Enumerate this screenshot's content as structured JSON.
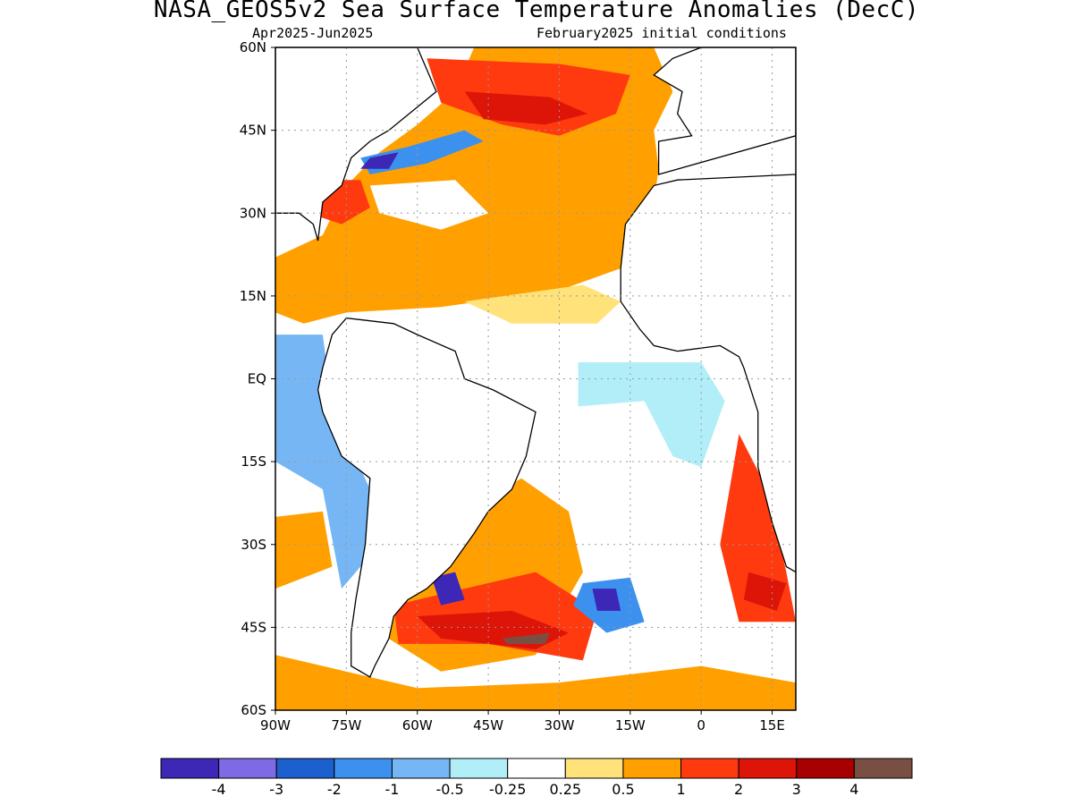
{
  "title": "NASA_GEOS5v2 Sea Surface Temperature Anomalies (DecC)",
  "subtitle_left": "Apr2025-Jun2025",
  "subtitle_right": "February2025 initial conditions",
  "map": {
    "lon_range": [
      -90,
      20
    ],
    "lat_range": [
      -60,
      60
    ],
    "lat_ticks": [
      {
        "value": 60,
        "label": "60N"
      },
      {
        "value": 45,
        "label": "45N"
      },
      {
        "value": 30,
        "label": "30N"
      },
      {
        "value": 15,
        "label": "15N"
      },
      {
        "value": 0,
        "label": "EQ"
      },
      {
        "value": -15,
        "label": "15S"
      },
      {
        "value": -30,
        "label": "30S"
      },
      {
        "value": -45,
        "label": "45S"
      },
      {
        "value": -60,
        "label": "60S"
      }
    ],
    "lon_ticks": [
      {
        "value": -90,
        "label": "90W"
      },
      {
        "value": -75,
        "label": "75W"
      },
      {
        "value": -60,
        "label": "60W"
      },
      {
        "value": -45,
        "label": "45W"
      },
      {
        "value": -30,
        "label": "30W"
      },
      {
        "value": -15,
        "label": "15W"
      },
      {
        "value": 0,
        "label": "0"
      },
      {
        "value": 15,
        "label": "15E"
      }
    ]
  },
  "colorbar": {
    "colors": [
      "#3d27b6",
      "#7f6ae6",
      "#1c5fcf",
      "#3d91ee",
      "#76b6f5",
      "#b2eef8",
      "#ffffff",
      "#ffe27a",
      "#ffa000",
      "#ff3a0e",
      "#dd1508",
      "#a80000",
      "#7a4f43"
    ],
    "labels": [
      "-4",
      "-3",
      "-2",
      "-1",
      "-0.5",
      "-0.25",
      "0.25",
      "0.5",
      "1",
      "2",
      "3",
      "4"
    ]
  },
  "regions": [
    {
      "name": "n-atlantic-warm",
      "color": "#ffa000",
      "lon_lat": [
        [
          -90,
          22
        ],
        [
          -80,
          26
        ],
        [
          -75,
          35
        ],
        [
          -68,
          41
        ],
        [
          -60,
          46
        ],
        [
          -52,
          52
        ],
        [
          -48,
          60
        ],
        [
          -10,
          60
        ],
        [
          -6,
          52
        ],
        [
          -10,
          45
        ],
        [
          -9,
          38
        ],
        [
          -10,
          32
        ],
        [
          -16,
          24
        ],
        [
          -17,
          20
        ],
        [
          -30,
          16
        ],
        [
          -55,
          13
        ],
        [
          -75,
          12
        ],
        [
          -84,
          10
        ],
        [
          -90,
          12
        ]
      ]
    },
    {
      "name": "n-atlantic-strong",
      "color": "#ff3a0e",
      "lon_lat": [
        [
          -58,
          58
        ],
        [
          -30,
          57
        ],
        [
          -15,
          55
        ],
        [
          -18,
          48
        ],
        [
          -30,
          44
        ],
        [
          -42,
          46
        ],
        [
          -55,
          50
        ]
      ]
    },
    {
      "name": "n-atlantic-core",
      "color": "#dd1508",
      "lon_lat": [
        [
          -50,
          52
        ],
        [
          -32,
          51
        ],
        [
          -24,
          48
        ],
        [
          -33,
          46
        ],
        [
          -46,
          47
        ]
      ]
    },
    {
      "name": "gulf-stream-warm",
      "color": "#ff3a0e",
      "lon_lat": [
        [
          -80,
          36
        ],
        [
          -72,
          36
        ],
        [
          -70,
          31
        ],
        [
          -76,
          28
        ],
        [
          -83,
          30
        ]
      ]
    },
    {
      "name": "newfoundland-cool",
      "color": "#3d91ee",
      "lon_lat": [
        [
          -72,
          40
        ],
        [
          -62,
          42
        ],
        [
          -50,
          45
        ],
        [
          -46,
          43
        ],
        [
          -58,
          39
        ],
        [
          -70,
          37
        ]
      ]
    },
    {
      "name": "cape-cod-cold",
      "color": "#3d27b6",
      "lon_lat": [
        [
          -70,
          40
        ],
        [
          -64,
          41
        ],
        [
          -66,
          38
        ],
        [
          -72,
          38
        ]
      ]
    },
    {
      "name": "mid-atlantic-neutral",
      "color": "#ffffff",
      "lon_lat": [
        [
          -70,
          35
        ],
        [
          -52,
          36
        ],
        [
          -45,
          30
        ],
        [
          -55,
          27
        ],
        [
          -68,
          30
        ]
      ]
    },
    {
      "name": "tropical-yellow",
      "color": "#ffe27a",
      "lon_lat": [
        [
          -50,
          14
        ],
        [
          -25,
          17
        ],
        [
          -17,
          14
        ],
        [
          -22,
          10
        ],
        [
          -40,
          10
        ]
      ]
    },
    {
      "name": "eq-cool",
      "color": "#76b6f5",
      "lon_lat": [
        [
          -24,
          2
        ],
        [
          -6,
          2
        ],
        [
          -4,
          -2
        ],
        [
          -22,
          -3
        ]
      ]
    },
    {
      "name": "eq-lightblue",
      "color": "#b2eef8",
      "lon_lat": [
        [
          -26,
          3
        ],
        [
          0,
          3
        ],
        [
          5,
          -4
        ],
        [
          0,
          -16
        ],
        [
          -6,
          -14
        ],
        [
          -12,
          -4
        ],
        [
          -26,
          -5
        ]
      ]
    },
    {
      "name": "pacific-cool",
      "color": "#3d91ee",
      "lon_lat": [
        [
          -90,
          0
        ],
        [
          -80,
          0
        ],
        [
          -75,
          -10
        ],
        [
          -72,
          -20
        ],
        [
          -75,
          -20
        ],
        [
          -82,
          -10
        ],
        [
          -90,
          -8
        ]
      ]
    },
    {
      "name": "pacific-lightblue",
      "color": "#76b6f5",
      "lon_lat": [
        [
          -90,
          8
        ],
        [
          -80,
          8
        ],
        [
          -78,
          -5
        ],
        [
          -70,
          -20
        ],
        [
          -70,
          -32
        ],
        [
          -76,
          -38
        ],
        [
          -80,
          -20
        ],
        [
          -90,
          -15
        ]
      ]
    },
    {
      "name": "pacific-warm",
      "color": "#ffa000",
      "lon_lat": [
        [
          -90,
          -25
        ],
        [
          -80,
          -24
        ],
        [
          -78,
          -34
        ],
        [
          -90,
          -38
        ]
      ]
    },
    {
      "name": "s-atlantic-warm",
      "color": "#ffa000",
      "lon_lat": [
        [
          -48,
          -23
        ],
        [
          -38,
          -18
        ],
        [
          -28,
          -24
        ],
        [
          -25,
          -35
        ],
        [
          -35,
          -50
        ],
        [
          -55,
          -53
        ],
        [
          -68,
          -46
        ],
        [
          -62,
          -38
        ],
        [
          -53,
          -34
        ]
      ]
    },
    {
      "name": "s-atlantic-strong",
      "color": "#ff3a0e",
      "lon_lat": [
        [
          -65,
          -41
        ],
        [
          -50,
          -38
        ],
        [
          -35,
          -35
        ],
        [
          -22,
          -42
        ],
        [
          -25,
          -51
        ],
        [
          -45,
          -48
        ],
        [
          -64,
          -48
        ]
      ]
    },
    {
      "name": "s-atlantic-core",
      "color": "#dd1508",
      "lon_lat": [
        [
          -60,
          -43
        ],
        [
          -40,
          -42
        ],
        [
          -28,
          -46
        ],
        [
          -35,
          -49
        ],
        [
          -55,
          -47
        ]
      ]
    },
    {
      "name": "s-atlantic-max",
      "color": "#7a4f43",
      "lon_lat": [
        [
          -42,
          -47
        ],
        [
          -32,
          -46
        ],
        [
          -33,
          -48
        ],
        [
          -41,
          -48
        ]
      ]
    },
    {
      "name": "brazil-cold",
      "color": "#3d27b6",
      "lon_lat": [
        [
          -57,
          -36
        ],
        [
          -52,
          -35
        ],
        [
          -50,
          -40
        ],
        [
          -55,
          -41
        ]
      ]
    },
    {
      "name": "mid-s-atlantic-cool",
      "color": "#3d91ee",
      "lon_lat": [
        [
          -25,
          -37
        ],
        [
          -15,
          -36
        ],
        [
          -12,
          -44
        ],
        [
          -20,
          -46
        ],
        [
          -27,
          -41
        ]
      ]
    },
    {
      "name": "mid-s-atlantic-cold",
      "color": "#3d27b6",
      "lon_lat": [
        [
          -23,
          -38
        ],
        [
          -18,
          -38
        ],
        [
          -17,
          -42
        ],
        [
          -22,
          -42
        ]
      ]
    },
    {
      "name": "benguela-warm",
      "color": "#ff3a0e",
      "lon_lat": [
        [
          8,
          -10
        ],
        [
          14,
          -20
        ],
        [
          18,
          -35
        ],
        [
          20,
          -44
        ],
        [
          8,
          -44
        ],
        [
          4,
          -30
        ]
      ]
    },
    {
      "name": "benguela-core",
      "color": "#dd1508",
      "lon_lat": [
        [
          10,
          -35
        ],
        [
          18,
          -37
        ],
        [
          16,
          -42
        ],
        [
          9,
          -40
        ]
      ]
    },
    {
      "name": "south-warm-band",
      "color": "#ffa000",
      "lon_lat": [
        [
          -90,
          -50
        ],
        [
          -60,
          -56
        ],
        [
          -30,
          -55
        ],
        [
          0,
          -52
        ],
        [
          20,
          -55
        ],
        [
          20,
          -60
        ],
        [
          -90,
          -60
        ]
      ]
    }
  ],
  "land": [
    {
      "name": "north-america",
      "lon_lat": [
        [
          -90,
          60
        ],
        [
          -60,
          60
        ],
        [
          -56,
          52
        ],
        [
          -66,
          45
        ],
        [
          -70,
          43
        ],
        [
          -74,
          40
        ],
        [
          -76,
          35
        ],
        [
          -80,
          32
        ],
        [
          -81,
          25
        ],
        [
          -82,
          28
        ],
        [
          -85,
          30
        ],
        [
          -90,
          30
        ]
      ]
    },
    {
      "name": "south-america",
      "lon_lat": [
        [
          -78,
          8
        ],
        [
          -75,
          11
        ],
        [
          -65,
          10
        ],
        [
          -60,
          8
        ],
        [
          -52,
          5
        ],
        [
          -50,
          0
        ],
        [
          -44,
          -2
        ],
        [
          -35,
          -6
        ],
        [
          -37,
          -14
        ],
        [
          -40,
          -20
        ],
        [
          -45,
          -24
        ],
        [
          -48,
          -28
        ],
        [
          -53,
          -34
        ],
        [
          -58,
          -38
        ],
        [
          -62,
          -40
        ],
        [
          -65,
          -43
        ],
        [
          -66,
          -47
        ],
        [
          -69,
          -52
        ],
        [
          -70,
          -54
        ],
        [
          -74,
          -52
        ],
        [
          -74,
          -46
        ],
        [
          -73,
          -40
        ],
        [
          -71,
          -30
        ],
        [
          -70,
          -18
        ],
        [
          -76,
          -14
        ],
        [
          -80,
          -6
        ],
        [
          -81,
          -2
        ],
        [
          -80,
          2
        ],
        [
          -78,
          8
        ]
      ]
    },
    {
      "name": "africa",
      "lon_lat": [
        [
          -17,
          20
        ],
        [
          -16,
          28
        ],
        [
          -10,
          35
        ],
        [
          -5,
          36
        ],
        [
          20,
          37
        ],
        [
          20,
          -35
        ],
        [
          18,
          -34
        ],
        [
          15,
          -26
        ],
        [
          12,
          -16
        ],
        [
          12,
          -6
        ],
        [
          9,
          2
        ],
        [
          8,
          4
        ],
        [
          4,
          6
        ],
        [
          -5,
          5
        ],
        [
          -10,
          6
        ],
        [
          -13,
          9
        ],
        [
          -17,
          14
        ]
      ]
    },
    {
      "name": "europe",
      "lon_lat": [
        [
          -9,
          37
        ],
        [
          -9,
          43
        ],
        [
          -2,
          44
        ],
        [
          -5,
          48
        ],
        [
          -4,
          52
        ],
        [
          -10,
          55
        ],
        [
          -6,
          58
        ],
        [
          0,
          60
        ],
        [
          20,
          60
        ],
        [
          20,
          44
        ]
      ]
    }
  ]
}
